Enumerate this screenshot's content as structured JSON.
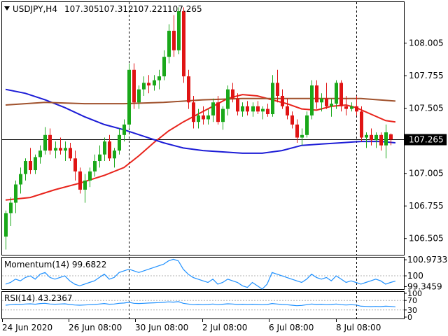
{
  "chart_data": {
    "type": "candlestick",
    "header": {
      "symbol_tf": "USDJPY,H4",
      "open": "107.305",
      "high": "107.312",
      "low": "107.221",
      "close": "107.265"
    },
    "price_axis": {
      "range": [
        106.38,
        108.32
      ],
      "ticks": [
        "108.005",
        "107.755",
        "107.505",
        "107.005",
        "106.755",
        "106.505"
      ],
      "current_price_label": "107.265",
      "current_price": 107.265
    },
    "time_axis": {
      "labels": [
        "24 Jun 2020",
        "26 Jun 08:00",
        "30 Jun 08:00",
        "2 Jul 08:00",
        "6 Jul 08:00",
        "8 Jul 08:00"
      ],
      "session_separator_bars": [
        25,
        71
      ]
    },
    "candles": [
      [
        106.52,
        106.72,
        106.42,
        106.7
      ],
      [
        106.7,
        106.82,
        106.6,
        106.78
      ],
      [
        106.78,
        106.95,
        106.7,
        106.92
      ],
      [
        106.92,
        107.05,
        106.85,
        107.0
      ],
      [
        107.0,
        107.12,
        106.95,
        107.1
      ],
      [
        107.1,
        107.2,
        107.0,
        107.03
      ],
      [
        107.03,
        107.15,
        107.0,
        107.13
      ],
      [
        107.13,
        107.22,
        107.08,
        107.18
      ],
      [
        107.18,
        107.36,
        107.15,
        107.3
      ],
      [
        107.3,
        107.35,
        107.15,
        107.18
      ],
      [
        107.18,
        107.25,
        107.12,
        107.2
      ],
      [
        107.2,
        107.28,
        107.15,
        107.18
      ],
      [
        107.18,
        107.25,
        107.1,
        107.2
      ],
      [
        107.2,
        107.24,
        107.1,
        107.12
      ],
      [
        107.12,
        107.18,
        106.95,
        107.02
      ],
      [
        107.02,
        107.05,
        106.85,
        106.88
      ],
      [
        106.88,
        107.0,
        106.78,
        106.95
      ],
      [
        106.95,
        107.05,
        106.9,
        107.02
      ],
      [
        107.02,
        107.15,
        106.98,
        107.1
      ],
      [
        107.1,
        107.22,
        107.05,
        107.15
      ],
      [
        107.15,
        107.28,
        107.1,
        107.25
      ],
      [
        107.25,
        107.3,
        107.1,
        107.12
      ],
      [
        107.12,
        107.2,
        107.05,
        107.18
      ],
      [
        107.18,
        107.35,
        107.15,
        107.3
      ],
      [
        107.3,
        107.42,
        107.25,
        107.38
      ],
      [
        107.38,
        107.85,
        107.35,
        107.8
      ],
      [
        107.8,
        107.85,
        107.5,
        107.55
      ],
      [
        107.55,
        107.68,
        107.5,
        107.65
      ],
      [
        107.65,
        107.75,
        107.6,
        107.7
      ],
      [
        107.7,
        107.76,
        107.62,
        107.68
      ],
      [
        107.68,
        107.76,
        107.64,
        107.72
      ],
      [
        107.72,
        107.8,
        107.65,
        107.75
      ],
      [
        107.75,
        107.95,
        107.72,
        107.9
      ],
      [
        107.9,
        108.15,
        107.85,
        108.1
      ],
      [
        108.1,
        108.22,
        107.9,
        107.95
      ],
      [
        107.95,
        108.28,
        107.92,
        108.25
      ],
      [
        108.25,
        108.28,
        107.7,
        107.75
      ],
      [
        107.75,
        107.8,
        107.5,
        107.55
      ],
      [
        107.55,
        107.6,
        107.35,
        107.4
      ],
      [
        107.4,
        107.5,
        107.35,
        107.45
      ],
      [
        107.45,
        107.52,
        107.38,
        107.42
      ],
      [
        107.42,
        107.5,
        107.38,
        107.45
      ],
      [
        107.45,
        107.58,
        107.4,
        107.55
      ],
      [
        107.55,
        107.6,
        107.38,
        107.4
      ],
      [
        107.4,
        107.52,
        107.34,
        107.5
      ],
      [
        107.5,
        107.68,
        107.45,
        107.65
      ],
      [
        107.65,
        107.7,
        107.55,
        107.58
      ],
      [
        107.58,
        107.62,
        107.45,
        107.48
      ],
      [
        107.48,
        107.55,
        107.44,
        107.52
      ],
      [
        107.52,
        107.56,
        107.45,
        107.48
      ],
      [
        107.48,
        107.55,
        107.44,
        107.52
      ],
      [
        107.52,
        107.56,
        107.46,
        107.48
      ],
      [
        107.48,
        107.52,
        107.42,
        107.5
      ],
      [
        107.5,
        107.54,
        107.44,
        107.46
      ],
      [
        107.46,
        107.76,
        107.44,
        107.7
      ],
      [
        107.7,
        107.8,
        107.55,
        107.6
      ],
      [
        107.6,
        107.65,
        107.5,
        107.52
      ],
      [
        107.52,
        107.58,
        107.42,
        107.45
      ],
      [
        107.45,
        107.48,
        107.35,
        107.38
      ],
      [
        107.38,
        107.42,
        107.24,
        107.28
      ],
      [
        107.28,
        107.35,
        107.22,
        107.3
      ],
      [
        107.3,
        107.48,
        107.28,
        107.45
      ],
      [
        107.45,
        107.72,
        107.42,
        107.68
      ],
      [
        107.68,
        107.72,
        107.5,
        107.55
      ],
      [
        107.55,
        107.62,
        107.48,
        107.58
      ],
      [
        107.58,
        107.7,
        107.5,
        107.52
      ],
      [
        107.52,
        107.58,
        107.44,
        107.54
      ],
      [
        107.54,
        107.72,
        107.5,
        107.7
      ],
      [
        107.7,
        107.72,
        107.48,
        107.52
      ],
      [
        107.52,
        107.6,
        107.45,
        107.5
      ],
      [
        107.5,
        107.55,
        107.48,
        107.52
      ],
      [
        107.52,
        107.6,
        107.45,
        107.48
      ],
      [
        107.48,
        107.52,
        107.25,
        107.28
      ],
      [
        107.28,
        107.32,
        107.2,
        107.3
      ],
      [
        107.3,
        107.35,
        107.22,
        107.26
      ],
      [
        107.26,
        107.32,
        107.2,
        107.3
      ],
      [
        107.3,
        107.32,
        107.18,
        107.22
      ],
      [
        107.22,
        107.38,
        107.12,
        107.32
      ],
      [
        107.305,
        107.312,
        107.221,
        107.265
      ]
    ],
    "moving_averages": [
      {
        "color": "#e8241c",
        "points": [
          [
            0,
            106.8
          ],
          [
            5,
            106.82
          ],
          [
            10,
            106.88
          ],
          [
            15,
            106.93
          ],
          [
            20,
            106.99
          ],
          [
            24,
            107.05
          ],
          [
            27,
            107.14
          ],
          [
            30,
            107.24
          ],
          [
            33,
            107.33
          ],
          [
            36,
            107.4
          ],
          [
            39,
            107.46
          ],
          [
            42,
            107.52
          ],
          [
            45,
            107.58
          ],
          [
            48,
            107.61
          ],
          [
            51,
            107.6
          ],
          [
            54,
            107.57
          ],
          [
            57,
            107.54
          ],
          [
            60,
            107.5
          ],
          [
            63,
            107.49
          ],
          [
            66,
            107.52
          ],
          [
            69,
            107.53
          ],
          [
            71,
            107.51
          ],
          [
            74,
            107.46
          ],
          [
            77,
            107.41
          ],
          [
            79,
            107.4
          ]
        ]
      },
      {
        "color": "#1c1cd6",
        "points": [
          [
            0,
            107.65
          ],
          [
            4,
            107.62
          ],
          [
            8,
            107.57
          ],
          [
            12,
            107.51
          ],
          [
            16,
            107.44
          ],
          [
            20,
            107.38
          ],
          [
            24,
            107.34
          ],
          [
            28,
            107.29
          ],
          [
            32,
            107.24
          ],
          [
            36,
            107.2
          ],
          [
            40,
            107.18
          ],
          [
            44,
            107.17
          ],
          [
            48,
            107.16
          ],
          [
            52,
            107.16
          ],
          [
            56,
            107.18
          ],
          [
            60,
            107.22
          ],
          [
            64,
            107.23
          ],
          [
            68,
            107.24
          ],
          [
            72,
            107.25
          ],
          [
            76,
            107.25
          ],
          [
            79,
            107.24
          ]
        ]
      },
      {
        "color": "#a0522d",
        "points": [
          [
            0,
            107.53
          ],
          [
            8,
            107.55
          ],
          [
            16,
            107.54
          ],
          [
            24,
            107.54
          ],
          [
            32,
            107.55
          ],
          [
            40,
            107.57
          ],
          [
            48,
            107.58
          ],
          [
            56,
            107.58
          ],
          [
            64,
            107.58
          ],
          [
            72,
            107.58
          ],
          [
            79,
            107.56
          ]
        ]
      }
    ],
    "momentum": {
      "label": "Momentum(14) 99.6822",
      "range": [
        99.2,
        101.1
      ],
      "ticks": [
        "100.9733",
        "100",
        "99.3459"
      ],
      "reference": 100,
      "values": [
        99.5,
        99.6,
        99.8,
        99.7,
        99.9,
        100.0,
        99.8,
        100.1,
        100.2,
        99.9,
        99.8,
        99.9,
        100.0,
        99.7,
        99.5,
        99.4,
        99.5,
        99.6,
        99.7,
        99.9,
        100.1,
        99.8,
        99.9,
        100.2,
        100.3,
        100.4,
        100.3,
        100.2,
        100.3,
        100.4,
        100.5,
        100.6,
        100.7,
        100.9,
        101.0,
        100.9,
        100.4,
        100.1,
        99.9,
        99.8,
        99.7,
        99.6,
        99.8,
        99.5,
        99.6,
        99.8,
        99.7,
        99.6,
        99.4,
        99.3,
        99.6,
        99.4,
        99.2,
        99.5,
        100.2,
        100.1,
        100.0,
        99.9,
        99.8,
        99.7,
        99.6,
        99.8,
        100.1,
        99.9,
        99.8,
        99.9,
        99.7,
        100.0,
        99.8,
        99.6,
        99.7,
        99.6,
        99.5,
        99.6,
        99.7,
        99.8,
        99.7,
        99.5,
        99.6,
        99.68
      ]
    },
    "rsi": {
      "label": "RSI(14) 43.2367",
      "range": [
        0,
        100
      ],
      "ticks": [
        "100",
        "70",
        "30",
        "0"
      ],
      "levels": [
        70,
        30
      ],
      "values": [
        50,
        52,
        54,
        53,
        55,
        56,
        54,
        57,
        58,
        55,
        54,
        55,
        56,
        53,
        51,
        50,
        51,
        52,
        53,
        55,
        57,
        54,
        55,
        58,
        59,
        62,
        58,
        57,
        58,
        59,
        60,
        61,
        62,
        64,
        63,
        65,
        58,
        55,
        52,
        53,
        52,
        53,
        55,
        52,
        54,
        56,
        55,
        53,
        54,
        53,
        54,
        53,
        52,
        53,
        57,
        55,
        53,
        52,
        50,
        48,
        49,
        52,
        55,
        53,
        54,
        52,
        53,
        55,
        52,
        51,
        52,
        51,
        46,
        45,
        44,
        45,
        44,
        46,
        45,
        43.2
      ]
    }
  }
}
